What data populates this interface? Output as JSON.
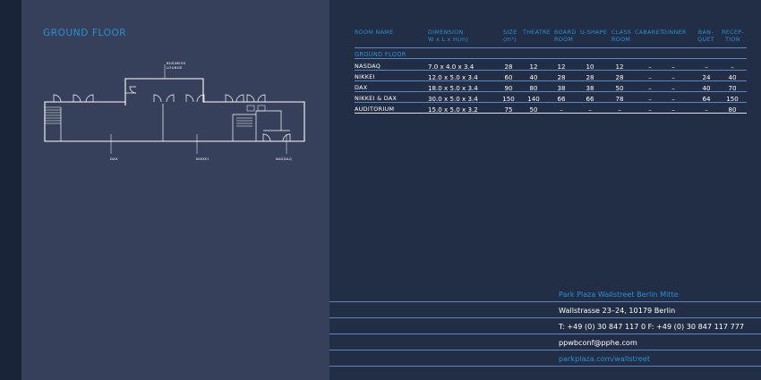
{
  "section": {
    "title": "GROUND FLOOR"
  },
  "plan": {
    "labels": {
      "business_lounge": "BUSINESS\nLOUNGE",
      "dax": "DAX",
      "nikkei": "NIKKEI",
      "nasdaq": "NASDAQ"
    },
    "line_color": "#ffffff"
  },
  "table": {
    "headers": {
      "room_name": "ROOM NAME",
      "dimension_1": "DIMENSION",
      "dimension_2": "W x L x H(m)",
      "size_1": "SIZE",
      "size_2": "(m²)",
      "theatre": "THEATRE",
      "board_1": "BOARD",
      "board_2": "ROOM",
      "ushape": "U-SHAPE",
      "class_1": "CLASS",
      "class_2": "ROOM",
      "cabaret": "CABARET",
      "dinner": "DINNER",
      "banquet_1": "BAN-",
      "banquet_2": "QUET",
      "reception_1": "RECEP-",
      "reception_2": "TION"
    },
    "subsection": "GROUND FLOOR",
    "rows": [
      {
        "name": "NASDAQ",
        "dimension": "7.0 x 4.0 x 3.4",
        "size": "28",
        "theatre": "12",
        "board": "12",
        "ushape": "10",
        "class": "12",
        "cabaret": "–",
        "dinner": "–",
        "banquet": "–",
        "reception": "–"
      },
      {
        "name": "NIKKEI",
        "dimension": "12.0 x 5.0 x 3.4",
        "size": "60",
        "theatre": "40",
        "board": "28",
        "ushape": "28",
        "class": "28",
        "cabaret": "–",
        "dinner": "–",
        "banquet": "24",
        "reception": "40"
      },
      {
        "name": "DAX",
        "dimension": "18.0 x 5.0 x 3.4",
        "size": "90",
        "theatre": "80",
        "board": "38",
        "ushape": "38",
        "class": "50",
        "cabaret": "–",
        "dinner": "–",
        "banquet": "40",
        "reception": "70"
      },
      {
        "name": "NIKKEI & DAX",
        "dimension": "30.0 x 5.0 x 3.4",
        "size": "150",
        "theatre": "140",
        "board": "66",
        "ushape": "66",
        "class": "78",
        "cabaret": "–",
        "dinner": "–",
        "banquet": "64",
        "reception": "150"
      },
      {
        "name": "AUDITORIUM",
        "dimension": "15.0 x 5.0 x 3.2",
        "size": "75",
        "theatre": "50",
        "board": "–",
        "ushape": "–",
        "class": "–",
        "cabaret": "–",
        "dinner": "–",
        "banquet": "–",
        "reception": "80"
      }
    ]
  },
  "contact": {
    "hotel_name": "Park Plaza Wallstreet Berlin Mitte",
    "address": "Wallstrasse 23–24, 10179 Berlin",
    "phone": "T: +49 (0) 30 847 117 0  F: +49 (0) 30 847 117 777",
    "email": "ppwbconf@pphe.com",
    "website": "parkplaza.com/wallstreet"
  },
  "colors": {
    "accent": "#2b8fd4",
    "left_panel": "#36405b",
    "right_panel": "#222d46",
    "rule": "#5f86bf"
  }
}
